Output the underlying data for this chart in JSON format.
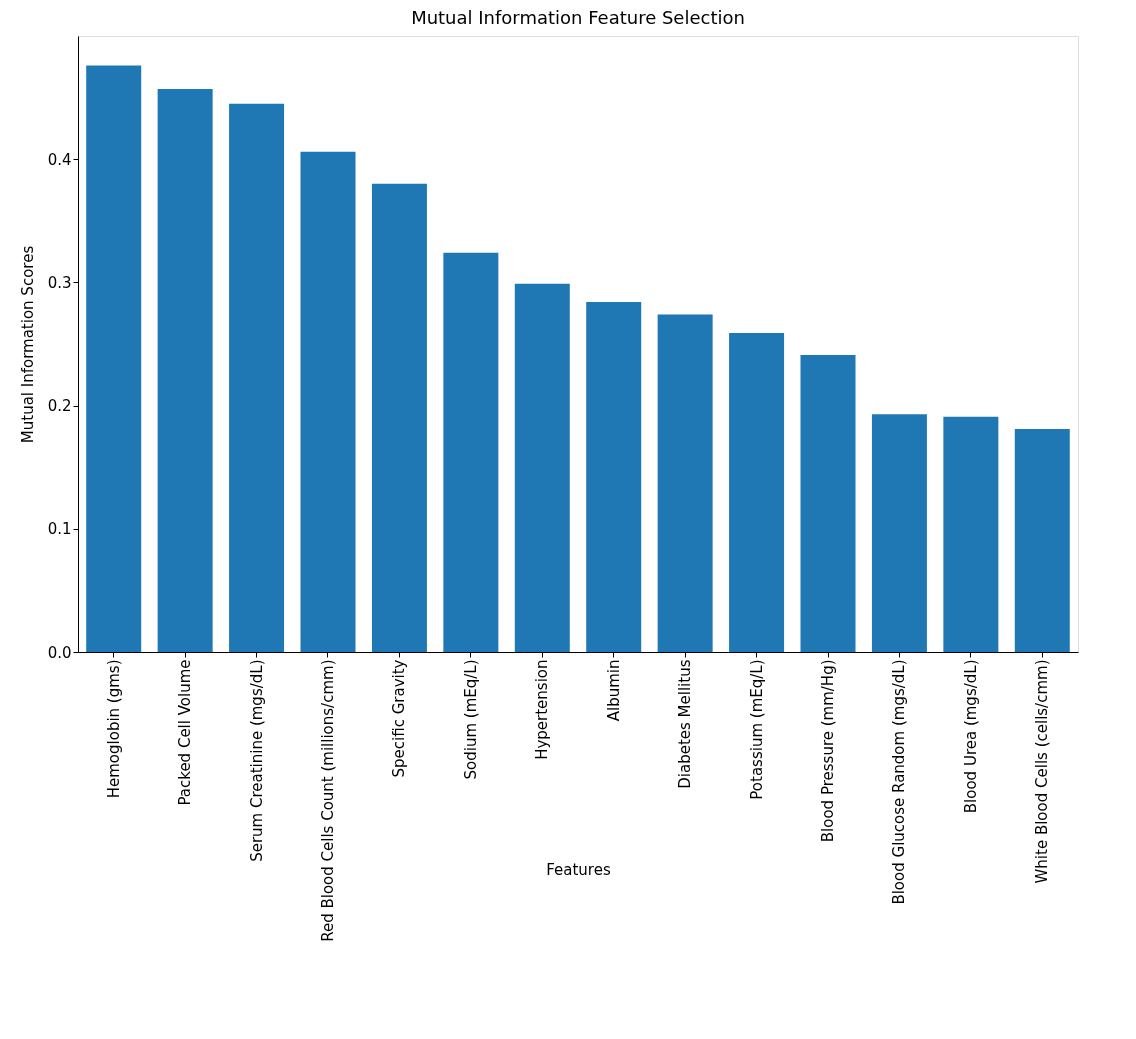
{
  "chart_data": {
    "type": "bar",
    "title": "Mutual Information Feature Selection",
    "xlabel": "Features",
    "ylabel": "Mutual Information Scores",
    "categories": [
      "Hemoglobin (gms)",
      "Packed Cell Volume",
      "Serum Creatinine (mgs/dL)",
      "Red Blood Cells Count (millions/cmm)",
      "Specific Gravity",
      "Sodium (mEq/L)",
      "Hypertension",
      "Albumin",
      "Diabetes Mellitus",
      "Potassium (mEq/L)",
      "Blood Pressure (mm/Hg)",
      "Blood Glucose Random (mgs/dL)",
      "Blood Urea (mgs/dL)",
      "White Blood Cells (cells/cmm)"
    ],
    "values": [
      0.476,
      0.457,
      0.445,
      0.406,
      0.38,
      0.324,
      0.299,
      0.284,
      0.274,
      0.259,
      0.241,
      0.193,
      0.191,
      0.181
    ],
    "color": "#1f77b4",
    "ylim": [
      0,
      0.5
    ],
    "yticks": [
      {
        "value": 0,
        "label": "0.0"
      },
      0.1,
      0.2,
      0.3,
      0.4
    ]
  }
}
